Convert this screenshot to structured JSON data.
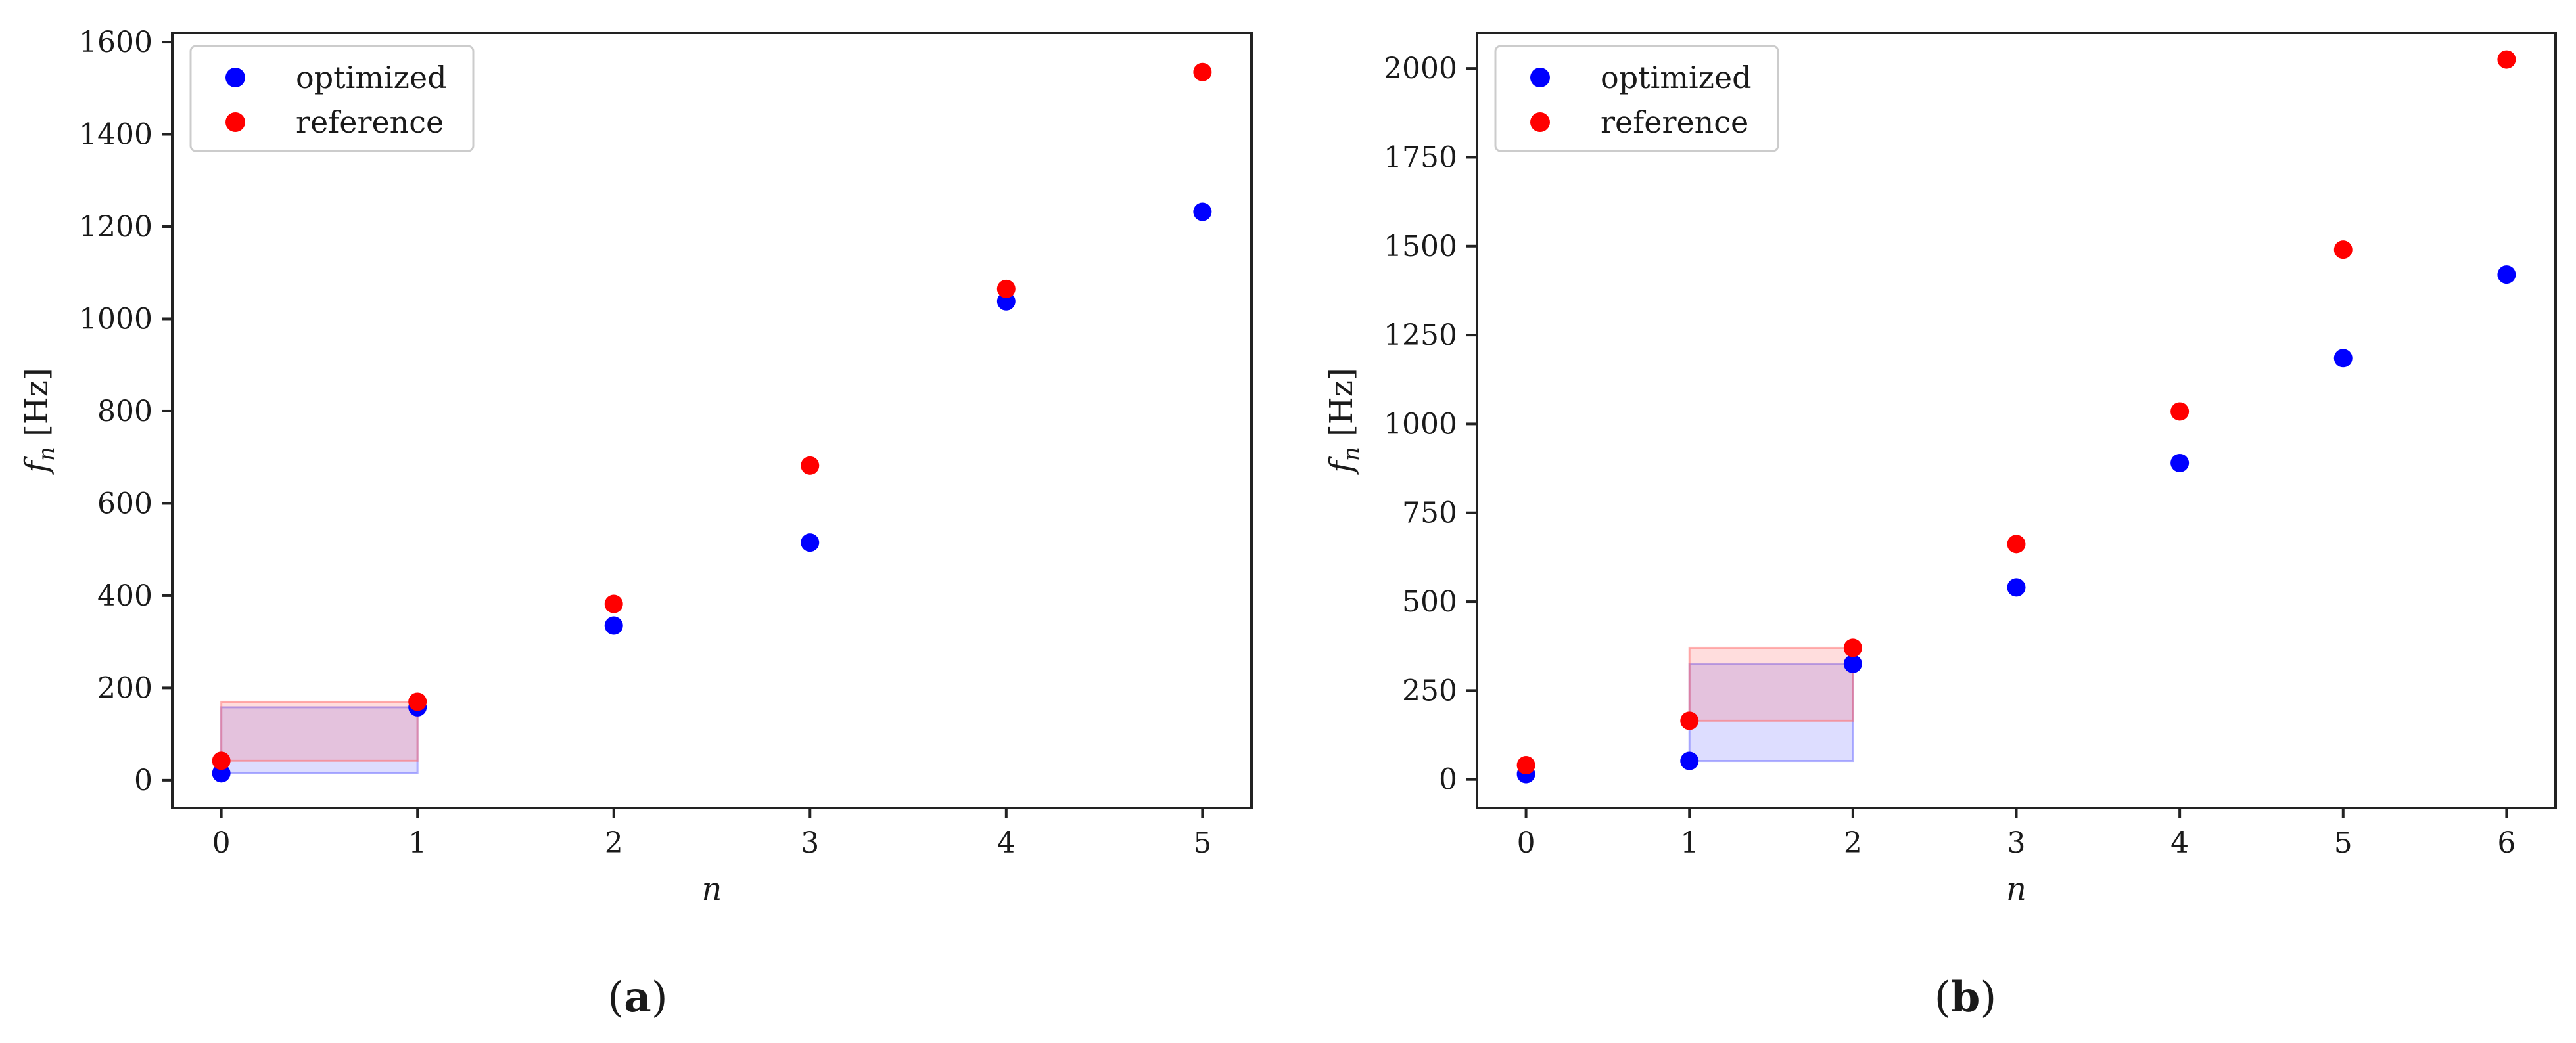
{
  "figure": {
    "panels": [
      {
        "caption_open": "(",
        "caption_letter": "a",
        "caption_close": ")"
      },
      {
        "caption_open": "(",
        "caption_letter": "b",
        "caption_close": ")"
      }
    ]
  },
  "colors": {
    "optimized": "#0000ff",
    "reference": "#ff0000",
    "optimized_band": "#6666ff",
    "reference_band": "#ff6666",
    "axis": "#222222"
  },
  "chart_data": [
    {
      "type": "scatter",
      "xlabel": "n",
      "ylabel": "f_n [Hz]",
      "ylabel_main": "f",
      "ylabel_sub": "n",
      "ylabel_rest": " [Hz]",
      "xlim": [
        -0.25,
        5.25
      ],
      "ylim": [
        -60,
        1620
      ],
      "xticks": [
        0,
        1,
        2,
        3,
        4,
        5
      ],
      "xtick_labels": [
        "0",
        "1",
        "2",
        "3",
        "4",
        "5"
      ],
      "yticks": [
        0,
        200,
        400,
        600,
        800,
        1000,
        1200,
        1400,
        1600
      ],
      "ytick_labels": [
        "0",
        "200",
        "400",
        "600",
        "800",
        "1000",
        "1200",
        "1400",
        "1600"
      ],
      "legend": {
        "position": "top-left",
        "entries": [
          "optimized",
          "reference"
        ]
      },
      "series": [
        {
          "name": "optimized",
          "color": "#0000ff",
          "x": [
            0,
            1,
            2,
            3,
            4,
            5
          ],
          "y": [
            15,
            158,
            335,
            515,
            1038,
            1232
          ]
        },
        {
          "name": "reference",
          "color": "#ff0000",
          "x": [
            0,
            1,
            2,
            3,
            4,
            5
          ],
          "y": [
            42,
            170,
            382,
            682,
            1065,
            1535
          ]
        }
      ],
      "bands": [
        {
          "series": "optimized",
          "x": [
            0,
            1
          ],
          "y": [
            15,
            158
          ]
        },
        {
          "series": "reference",
          "x": [
            0,
            1
          ],
          "y": [
            42,
            170
          ]
        }
      ]
    },
    {
      "type": "scatter",
      "xlabel": "n",
      "ylabel": "f_n [Hz]",
      "ylabel_main": "f",
      "ylabel_sub": "n",
      "ylabel_rest": " [Hz]",
      "xlim": [
        -0.3,
        6.3
      ],
      "ylim": [
        -80,
        2100
      ],
      "xticks": [
        0,
        1,
        2,
        3,
        4,
        5,
        6
      ],
      "xtick_labels": [
        "0",
        "1",
        "2",
        "3",
        "4",
        "5",
        "6"
      ],
      "yticks": [
        0,
        250,
        500,
        750,
        1000,
        1250,
        1500,
        1750,
        2000
      ],
      "ytick_labels": [
        "0",
        "250",
        "500",
        "750",
        "1000",
        "1250",
        "1500",
        "1750",
        "2000"
      ],
      "legend": {
        "position": "top-left",
        "entries": [
          "optimized",
          "reference"
        ]
      },
      "series": [
        {
          "name": "optimized",
          "color": "#0000ff",
          "x": [
            0,
            1,
            2,
            3,
            4,
            5,
            6
          ],
          "y": [
            15,
            52,
            325,
            540,
            890,
            1185,
            1420
          ]
        },
        {
          "name": "reference",
          "color": "#ff0000",
          "x": [
            0,
            1,
            2,
            3,
            4,
            5,
            6
          ],
          "y": [
            40,
            165,
            370,
            662,
            1035,
            1490,
            2025
          ]
        }
      ],
      "bands": [
        {
          "series": "optimized",
          "x": [
            1,
            2
          ],
          "y": [
            52,
            325
          ]
        },
        {
          "series": "reference",
          "x": [
            1,
            2
          ],
          "y": [
            165,
            370
          ]
        }
      ]
    }
  ]
}
